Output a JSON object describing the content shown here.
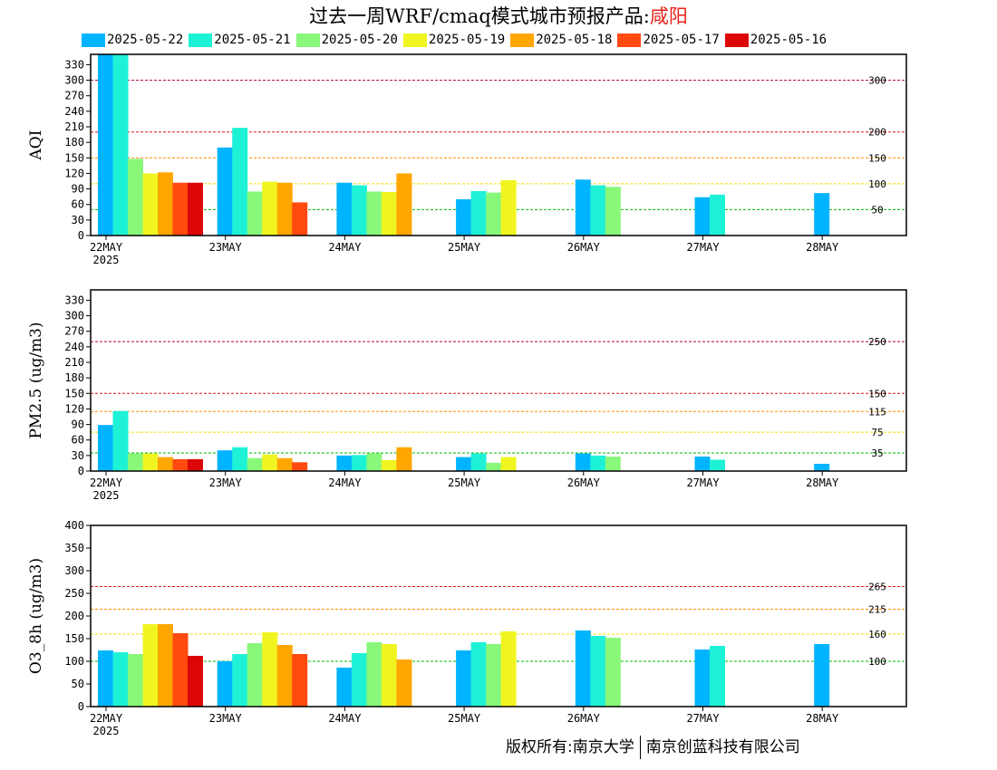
{
  "title": {
    "prefix": "过去一周WRF/cmaq模式城市预报产品:",
    "city": "咸阳",
    "city_color": "#e8221a"
  },
  "legend": [
    {
      "label": "2025-05-22",
      "color": "#00b4ff"
    },
    {
      "label": "2025-05-21",
      "color": "#1ef2d6"
    },
    {
      "label": "2025-05-20",
      "color": "#88f77a"
    },
    {
      "label": "2025-05-19",
      "color": "#f0f521"
    },
    {
      "label": "2025-05-18",
      "color": "#ffa600"
    },
    {
      "label": "2025-05-17",
      "color": "#ff4a10"
    },
    {
      "label": "2025-05-16",
      "color": "#dc0606"
    }
  ],
  "copyright": {
    "left": "版权所有:南京大学",
    "right": "南京创蓝科技有限公司"
  },
  "chart_data": [
    {
      "type": "bar",
      "ylabel": "AQI",
      "ylim": [
        0,
        350
      ],
      "yticks": [
        0,
        30,
        60,
        90,
        120,
        150,
        180,
        210,
        240,
        270,
        300,
        330
      ],
      "categories": [
        "22MAY",
        "23MAY",
        "24MAY",
        "25MAY",
        "26MAY",
        "27MAY",
        "28MAY"
      ],
      "year_label": "2025",
      "thresholds": [
        {
          "value": 300,
          "label": "300",
          "color": "#b0004c"
        },
        {
          "value": 200,
          "label": "200",
          "color": "#dd1a1a"
        },
        {
          "value": 150,
          "label": "150",
          "color": "#ff8c00"
        },
        {
          "value": 100,
          "label": "100",
          "color": "#f0e000"
        },
        {
          "value": 50,
          "label": "50",
          "color": "#00bb00"
        }
      ],
      "series": [
        {
          "name": "2025-05-22",
          "values": [
            350,
            170,
            102,
            70,
            108,
            74,
            82
          ]
        },
        {
          "name": "2025-05-21",
          "values": [
            350,
            208,
            97,
            86,
            97,
            79,
            null
          ]
        },
        {
          "name": "2025-05-20",
          "values": [
            148,
            85,
            85,
            83,
            94,
            null,
            null
          ]
        },
        {
          "name": "2025-05-19",
          "values": [
            120,
            104,
            84,
            107,
            null,
            null,
            null
          ]
        },
        {
          "name": "2025-05-18",
          "values": [
            122,
            102,
            120,
            null,
            null,
            null,
            null
          ]
        },
        {
          "name": "2025-05-17",
          "values": [
            102,
            64,
            null,
            null,
            null,
            null,
            null
          ]
        },
        {
          "name": "2025-05-16",
          "values": [
            102,
            null,
            null,
            null,
            null,
            null,
            null
          ]
        }
      ]
    },
    {
      "type": "bar",
      "ylabel": "PM2.5 (ug/m3)",
      "ylim": [
        0,
        350
      ],
      "yticks": [
        0,
        30,
        60,
        90,
        120,
        150,
        180,
        210,
        240,
        270,
        300,
        330
      ],
      "categories": [
        "22MAY",
        "23MAY",
        "24MAY",
        "25MAY",
        "26MAY",
        "27MAY",
        "28MAY"
      ],
      "year_label": "2025",
      "thresholds": [
        {
          "value": 250,
          "label": "250",
          "color": "#b0004c"
        },
        {
          "value": 150,
          "label": "150",
          "color": "#dd1a1a"
        },
        {
          "value": 115,
          "label": "115",
          "color": "#ff8c00"
        },
        {
          "value": 75,
          "label": "75",
          "color": "#f0e000"
        },
        {
          "value": 35,
          "label": "35",
          "color": "#00bb00"
        }
      ],
      "series": [
        {
          "name": "2025-05-22",
          "values": [
            89,
            40,
            30,
            27,
            34,
            28,
            14
          ]
        },
        {
          "name": "2025-05-21",
          "values": [
            116,
            46,
            31,
            34,
            30,
            22,
            null
          ]
        },
        {
          "name": "2025-05-20",
          "values": [
            34,
            25,
            34,
            16,
            28,
            null,
            null
          ]
        },
        {
          "name": "2025-05-19",
          "values": [
            34,
            32,
            21,
            27,
            null,
            null,
            null
          ]
        },
        {
          "name": "2025-05-18",
          "values": [
            27,
            25,
            46,
            null,
            null,
            null,
            null
          ]
        },
        {
          "name": "2025-05-17",
          "values": [
            23,
            17,
            null,
            null,
            null,
            null,
            null
          ]
        },
        {
          "name": "2025-05-16",
          "values": [
            23,
            null,
            null,
            null,
            null,
            null,
            null
          ]
        }
      ]
    },
    {
      "type": "bar",
      "ylabel": "O3_8h (ug/m3)",
      "ylim": [
        0,
        400
      ],
      "yticks": [
        0,
        50,
        100,
        150,
        200,
        250,
        300,
        350,
        400
      ],
      "categories": [
        "22MAY",
        "23MAY",
        "24MAY",
        "25MAY",
        "26MAY",
        "27MAY",
        "28MAY"
      ],
      "year_label": "2025",
      "thresholds": [
        {
          "value": 265,
          "label": "265",
          "color": "#dd1a1a"
        },
        {
          "value": 215,
          "label": "215",
          "color": "#ff8c00"
        },
        {
          "value": 160,
          "label": "160",
          "color": "#f0e000"
        },
        {
          "value": 100,
          "label": "100",
          "color": "#00bb00"
        }
      ],
      "series": [
        {
          "name": "2025-05-22",
          "values": [
            124,
            100,
            86,
            124,
            168,
            126,
            138
          ]
        },
        {
          "name": "2025-05-21",
          "values": [
            120,
            116,
            118,
            142,
            156,
            134,
            null
          ]
        },
        {
          "name": "2025-05-20",
          "values": [
            116,
            140,
            142,
            138,
            152,
            null,
            null
          ]
        },
        {
          "name": "2025-05-19",
          "values": [
            182,
            164,
            138,
            166,
            null,
            null,
            null
          ]
        },
        {
          "name": "2025-05-18",
          "values": [
            182,
            136,
            104,
            null,
            null,
            null,
            null
          ]
        },
        {
          "name": "2025-05-17",
          "values": [
            162,
            116,
            null,
            null,
            null,
            null,
            null
          ]
        },
        {
          "name": "2025-05-16",
          "values": [
            112,
            null,
            null,
            null,
            null,
            null,
            null
          ]
        }
      ]
    }
  ]
}
